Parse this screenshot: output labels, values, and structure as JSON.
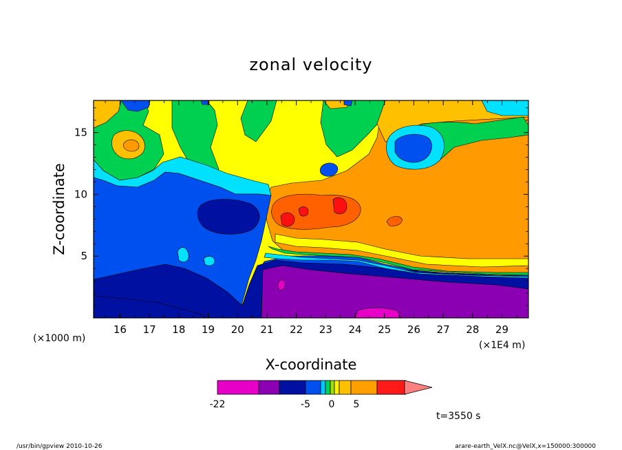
{
  "chart_data": {
    "type": "heatmap",
    "title": "zonal velocity",
    "xlabel": "X-coordinate",
    "ylabel": "Z-coordinate",
    "x_unit_left": "(×1000 m)",
    "x_unit_right": "(×1E4 m)",
    "x_ticks": [
      "16",
      "17",
      "18",
      "19",
      "20",
      "21",
      "22",
      "23",
      "24",
      "25",
      "26",
      "27",
      "28",
      "29"
    ],
    "y_ticks": [
      "5",
      "10",
      "15"
    ],
    "xlim": [
      15.1,
      29.9
    ],
    "ylim": [
      0,
      17.6
    ],
    "colorbar": {
      "labels": [
        {
          "text": "-22",
          "value": -22
        },
        {
          "text": "-5",
          "value": -5
        },
        {
          "text": "0",
          "value": 0
        },
        {
          "text": "5",
          "value": 5
        }
      ],
      "colors": [
        "#e600c8",
        "#8c00b4",
        "#0010a0",
        "#0050f0",
        "#00c8ff",
        "#00d060",
        "#a0e000",
        "#fff200",
        "#ffa800",
        "#ff7800",
        "#ff1a1a",
        "#ff8080"
      ]
    },
    "time_label": "t=3550 s",
    "colors": {
      "magenta": "#e600c8",
      "purple": "#8c00b4",
      "navy": "#0010a0",
      "blue": "#0050f0",
      "cyan": "#00e0ff",
      "green": "#00d050",
      "yellowgreen": "#a8e800",
      "yellow": "#ffff00",
      "gold": "#ffc000",
      "orange": "#ff9a00",
      "darkorange": "#ff6000",
      "red": "#ff1010"
    }
  },
  "footer": {
    "left": "/usr/bin/gpview   2010-10-26",
    "right": "arare-earth_VelX.nc@VelX,x=150000:300000"
  }
}
